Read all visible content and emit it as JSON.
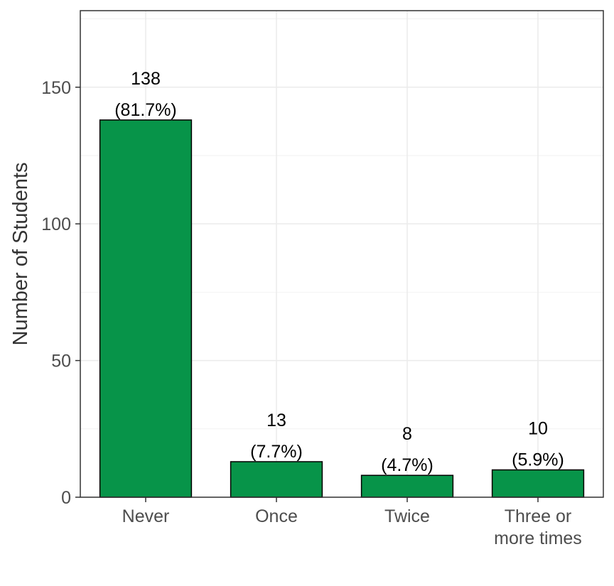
{
  "chart_data": {
    "type": "bar",
    "categories": [
      [
        "Never"
      ],
      [
        "Once"
      ],
      [
        "Twice"
      ],
      [
        "Three or",
        "more times"
      ]
    ],
    "values": [
      138,
      13,
      8,
      10
    ],
    "value_labels": [
      "138",
      "13",
      "8",
      "10"
    ],
    "percent_labels": [
      "(81.7%)",
      "(7.7%)",
      "(4.7%)",
      "(5.9%)"
    ],
    "xlabel": "",
    "ylabel": "Number of Students",
    "ylim": [
      0,
      178
    ],
    "yticks": [
      0,
      50,
      100,
      150
    ],
    "grid": true,
    "legend": "none",
    "bar_color": "#079449",
    "bar_edge_color": "#000000"
  }
}
